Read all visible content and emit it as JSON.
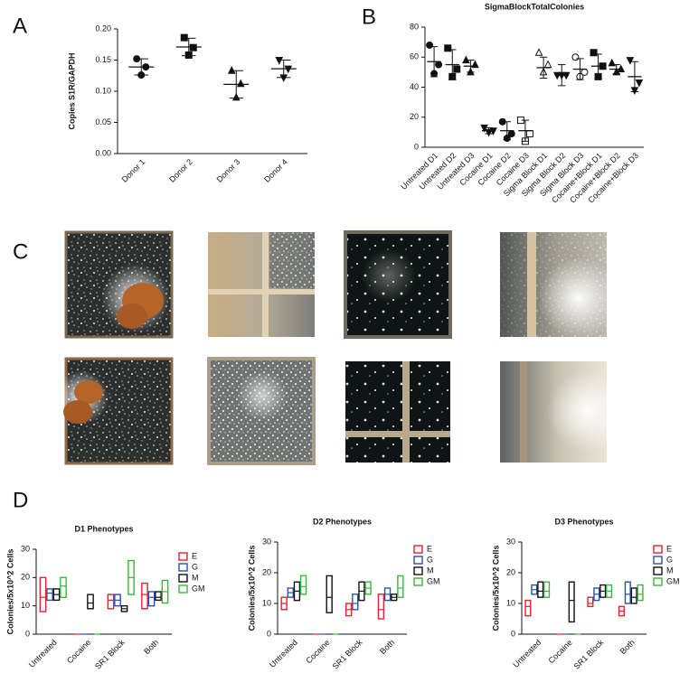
{
  "panel_labels": [
    "A",
    "B",
    "C",
    "D"
  ],
  "chart_data": [
    {
      "type": "dot",
      "ylabel": "Copies S1R/GAPDH",
      "categories": [
        "Donor 1",
        "Donor 2",
        "Donor 3",
        "Donor 4"
      ],
      "points": [
        [
          0.152,
          0.139,
          0.126
        ],
        [
          0.186,
          0.17,
          0.158
        ],
        [
          0.133,
          0.112,
          0.09
        ],
        [
          0.15,
          0.136,
          0.122
        ]
      ],
      "values": [
        0.139,
        0.171,
        0.111,
        0.136
      ],
      "errors": [
        0.013,
        0.014,
        0.022,
        0.014
      ],
      "ylim": [
        0,
        0.2
      ],
      "yticks": [
        {
          "value": 0,
          "label": "0.00"
        },
        {
          "value": 0.05,
          "label": "0.05"
        },
        {
          "value": 0.1,
          "label": "0.10"
        },
        {
          "value": 0.15,
          "label": "0.15"
        },
        {
          "value": 0.2,
          "label": "0.20"
        }
      ]
    },
    {
      "type": "dot",
      "title": "SigmaBlockTotalColonies",
      "categories": [
        "Untreated D1",
        "Untreated D2",
        "Untreated D3",
        "Cocaine D1",
        "Cocaine D2",
        "Cocaine D3",
        "Sigma Block D1",
        "Sigma Block D2",
        "Sigma Block D3",
        "Cocaine+Block D1",
        "Cocaine+Block D2",
        "Cocaine+Block D3"
      ],
      "points": [
        [
          68,
          55,
          49
        ],
        [
          66,
          52,
          47
        ],
        [
          58,
          55,
          50
        ],
        [
          13,
          11,
          10
        ],
        [
          17,
          9,
          6
        ],
        [
          18,
          9,
          4
        ],
        [
          63,
          55,
          50
        ],
        [
          48,
          48,
          48
        ],
        [
          60,
          50,
          47
        ],
        [
          63,
          54,
          47
        ],
        [
          56,
          52,
          50
        ],
        [
          58,
          43,
          38
        ]
      ],
      "values": [
        57,
        55,
        54,
        11,
        11,
        11,
        53,
        48,
        52,
        54,
        52,
        47
      ],
      "errors": [
        10,
        10,
        4,
        2,
        6,
        7,
        7,
        7,
        7,
        8,
        3,
        10
      ],
      "ylim": [
        0,
        80
      ],
      "yticks": [
        0,
        20,
        40,
        60,
        80
      ]
    },
    {
      "type": "floating_bar",
      "title": "D1 Phenotypes",
      "ylabel": "Colonies/5x10^2 Cells",
      "categories": [
        "Untreated",
        "Cocaine",
        "SR1 Block",
        "Both"
      ],
      "ylim": [
        0,
        30
      ],
      "yticks": [
        0,
        10,
        20,
        30
      ],
      "series": [
        {
          "name": "E",
          "color": "#e8202a",
          "low": [
            8,
            0,
            9,
            9
          ],
          "high": [
            20,
            0,
            14,
            18
          ],
          "values": [
            13,
            0,
            12,
            14
          ]
        },
        {
          "name": "G",
          "color": "#2a4fb0",
          "low": [
            12,
            0,
            10,
            10
          ],
          "high": [
            16,
            0,
            14,
            15
          ],
          "values": [
            14.5,
            0,
            12,
            13
          ]
        },
        {
          "name": "M",
          "color": "#111111",
          "low": [
            12,
            9,
            8,
            12
          ],
          "high": [
            16,
            14,
            10,
            15
          ],
          "values": [
            14,
            11,
            9,
            13
          ]
        },
        {
          "name": "GM",
          "color": "#3cb53c",
          "low": [
            13,
            0,
            14,
            11
          ],
          "high": [
            20,
            0,
            26,
            19
          ],
          "values": [
            17,
            0,
            20,
            15
          ]
        }
      ]
    },
    {
      "type": "floating_bar",
      "title": "D2 Phenotypes",
      "ylabel": "Colonies/5x10^2 Cells",
      "categories": [
        "Untreated",
        "Cocaine",
        "SR1 Block",
        "Both"
      ],
      "ylim": [
        0,
        30
      ],
      "yticks": [
        0,
        10,
        20,
        30
      ],
      "series": [
        {
          "name": "E",
          "color": "#e8202a",
          "low": [
            8,
            0,
            6,
            5
          ],
          "high": [
            12,
            0,
            10,
            13
          ],
          "values": [
            10,
            0,
            8,
            8
          ]
        },
        {
          "name": "G",
          "color": "#2a4fb0",
          "low": [
            12,
            0,
            8,
            11
          ],
          "high": [
            15,
            0,
            13,
            15
          ],
          "values": [
            13.5,
            0,
            10,
            13
          ]
        },
        {
          "name": "M",
          "color": "#111111",
          "low": [
            11,
            7,
            11,
            11
          ],
          "high": [
            17,
            19,
            17,
            13
          ],
          "values": [
            14,
            12,
            14,
            12
          ]
        },
        {
          "name": "GM",
          "color": "#3cb53c",
          "low": [
            13,
            0,
            13,
            12
          ],
          "high": [
            19,
            0,
            17,
            19
          ],
          "values": [
            15.5,
            0,
            15,
            15
          ]
        }
      ]
    },
    {
      "type": "floating_bar",
      "title": "D3 Phenotypes",
      "ylabel": "Colonies/5x10^2 Cells",
      "categories": [
        "Untreated",
        "Cocaine",
        "SR1 Block",
        "Both"
      ],
      "ylim": [
        0,
        30
      ],
      "yticks": [
        0,
        10,
        20,
        30
      ],
      "series": [
        {
          "name": "E",
          "color": "#e8202a",
          "low": [
            6,
            0,
            9,
            6
          ],
          "high": [
            11,
            0,
            12,
            9
          ],
          "values": [
            9,
            0,
            10,
            7.5
          ]
        },
        {
          "name": "G",
          "color": "#2a4fb0",
          "low": [
            13,
            0,
            11,
            10
          ],
          "high": [
            16,
            0,
            15,
            17
          ],
          "values": [
            14.5,
            0,
            13,
            13
          ]
        },
        {
          "name": "M",
          "color": "#111111",
          "low": [
            12,
            4,
            12,
            10
          ],
          "high": [
            17,
            17,
            16,
            15
          ],
          "values": [
            14,
            11,
            14,
            12
          ]
        },
        {
          "name": "GM",
          "color": "#3cb53c",
          "low": [
            12,
            0,
            12,
            11
          ],
          "high": [
            17,
            0,
            16,
            16
          ],
          "values": [
            14,
            0,
            14,
            13
          ]
        }
      ]
    }
  ]
}
